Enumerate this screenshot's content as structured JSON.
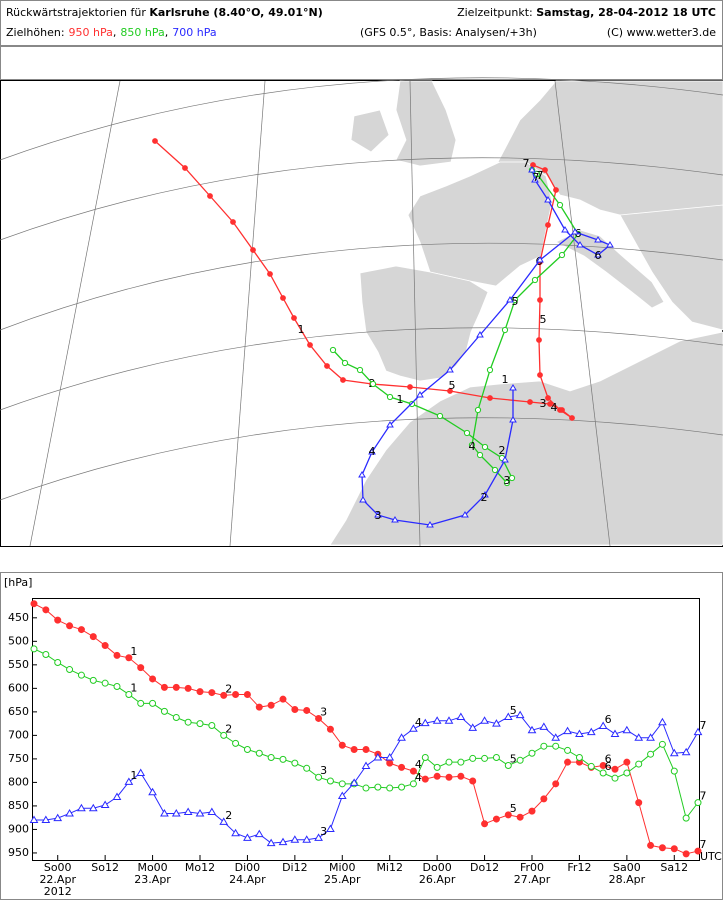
{
  "header": {
    "title_prefix": "Rückwärtstrajektorien für",
    "place": "Karlsruhe (8.40°O, 49.01°N)",
    "target_label": "Zielzeitpunkt:",
    "target": "Samstag, 28-04-2012  18 UTC",
    "levels_label": "Zielhöhen:",
    "levels_separator": ",",
    "model": "(GFS 0.5°, Basis: Analysen/+3h)",
    "copyright": "(C) www.wetter3.de"
  },
  "map": {
    "labels": [
      "1",
      "2",
      "3",
      "4",
      "5",
      "6",
      "7"
    ]
  },
  "chart_data": {
    "type": "line",
    "y_unit": "[hPa]",
    "x_unit": "UTC",
    "y_inverted": true,
    "xlim": [
      0,
      56
    ],
    "ylim": [
      410,
      965
    ],
    "yticks": [
      450,
      500,
      550,
      600,
      650,
      700,
      750,
      800,
      850,
      900,
      950
    ],
    "xticks": [
      {
        "value": 2,
        "label": "So00"
      },
      {
        "value": 6,
        "label": "So12"
      },
      {
        "value": 10,
        "label": "Mo00"
      },
      {
        "value": 14,
        "label": "Mo12"
      },
      {
        "value": 18,
        "label": "Di00"
      },
      {
        "value": 22,
        "label": "Di12"
      },
      {
        "value": 26,
        "label": "Mi00"
      },
      {
        "value": 30,
        "label": "Mi12"
      },
      {
        "value": 34,
        "label": "Do00"
      },
      {
        "value": 38,
        "label": "Do12"
      },
      {
        "value": 42,
        "label": "Fr00"
      },
      {
        "value": 46,
        "label": "Fr12"
      },
      {
        "value": 50,
        "label": "Sa00"
      },
      {
        "value": 54,
        "label": "Sa12"
      }
    ],
    "xtick_dates": [
      {
        "value": 2,
        "label": "22.Apr"
      },
      {
        "value": 10,
        "label": "23.Apr"
      },
      {
        "value": 18,
        "label": "24.Apr"
      },
      {
        "value": 26,
        "label": "25.Apr"
      },
      {
        "value": 34,
        "label": "26.Apr"
      },
      {
        "value": 42,
        "label": "27.Apr"
      },
      {
        "value": 50,
        "label": "28.Apr"
      }
    ],
    "year": {
      "value": 2,
      "label": "2012"
    },
    "day_markers": [
      {
        "value": 8,
        "label": "1"
      },
      {
        "value": 16,
        "label": "2"
      },
      {
        "value": 24,
        "label": "3"
      },
      {
        "value": 32,
        "label": "4"
      },
      {
        "value": 40,
        "label": "5"
      },
      {
        "value": 48,
        "label": "6"
      },
      {
        "value": 56,
        "label": "7"
      }
    ],
    "series": [
      {
        "name": "950 hPa",
        "color": "#ff3030",
        "marker": "filled-circle",
        "values": [
          420,
          433,
          455,
          467,
          475,
          490,
          509,
          530,
          535,
          556,
          580,
          598,
          598,
          600,
          607,
          609,
          615,
          613,
          613,
          640,
          636,
          623,
          645,
          647,
          664,
          687,
          721,
          730,
          730,
          740,
          759,
          768,
          776,
          793,
          787,
          789,
          787,
          797,
          888,
          878,
          869,
          874,
          861,
          835,
          803,
          757,
          757,
          768,
          764,
          772,
          757,
          843,
          934,
          939,
          941,
          952,
          946
        ]
      },
      {
        "name": "850 hPa",
        "color": "#22cc22",
        "marker": "circle",
        "values": [
          516,
          528,
          545,
          560,
          572,
          583,
          589,
          596,
          613,
          632,
          632,
          649,
          662,
          672,
          675,
          679,
          700,
          717,
          730,
          738,
          747,
          751,
          759,
          770,
          789,
          797,
          803,
          803,
          812,
          810,
          812,
          810,
          803,
          747,
          768,
          757,
          757,
          749,
          749,
          747,
          764,
          753,
          738,
          723,
          723,
          732,
          747,
          766,
          780,
          791,
          780,
          761,
          740,
          719,
          776,
          876,
          843
        ]
      },
      {
        "name": "700 hPa",
        "color": "#2a2aff",
        "marker": "triangle",
        "values": [
          880,
          880,
          876,
          866,
          855,
          855,
          848,
          831,
          799,
          780,
          821,
          866,
          866,
          863,
          866,
          863,
          884,
          908,
          918,
          910,
          929,
          927,
          922,
          922,
          918,
          899,
          829,
          801,
          765,
          747,
          747,
          705,
          686,
          674,
          669,
          669,
          661,
          684,
          669,
          675,
          661,
          657,
          689,
          682,
          705,
          691,
          697,
          693,
          680,
          697,
          689,
          705,
          705,
          672,
          738,
          736,
          693
        ]
      }
    ]
  }
}
